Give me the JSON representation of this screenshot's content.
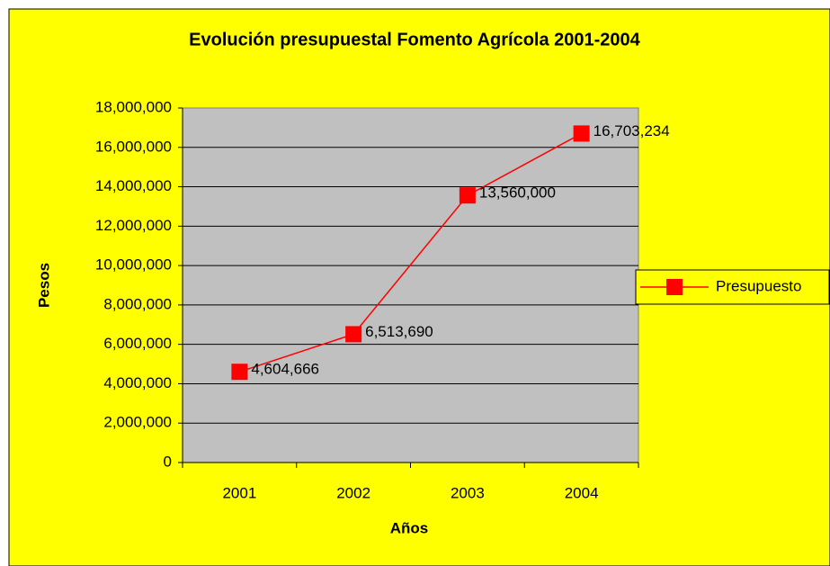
{
  "chart_data": {
    "type": "line",
    "title": "Evolución presupuestal Fomento Agrícola 2001-2004",
    "x_label": "Años",
    "y_label": "Pesos",
    "categories": [
      "2001",
      "2002",
      "2003",
      "2004"
    ],
    "series": [
      {
        "name": "Presupuesto",
        "color": "#ff0000",
        "values": [
          4604666,
          6513690,
          13560000,
          16703234
        ],
        "value_labels": [
          "4,604,666",
          "6,513,690",
          "13,560,000",
          "16,703,234"
        ]
      }
    ],
    "ylim": [
      0,
      18000000
    ],
    "yticks": [
      0,
      {
        "value": 2000000,
        "label": "2,000,000"
      },
      {
        "value": 4000000,
        "label": "4,000,000"
      },
      {
        "value": 6000000,
        "label": "6,000,000"
      },
      {
        "value": 8000000,
        "label": "8,000,000"
      },
      {
        "value": 10000000,
        "label": "10,000,000"
      },
      {
        "value": 12000000,
        "label": "12,000,000"
      },
      {
        "value": 14000000,
        "label": "14,000,000"
      },
      {
        "value": 16000000,
        "label": "16,000,000"
      },
      {
        "value": 18000000,
        "label": "18,000,000"
      }
    ],
    "grid": true,
    "legend": "right"
  }
}
